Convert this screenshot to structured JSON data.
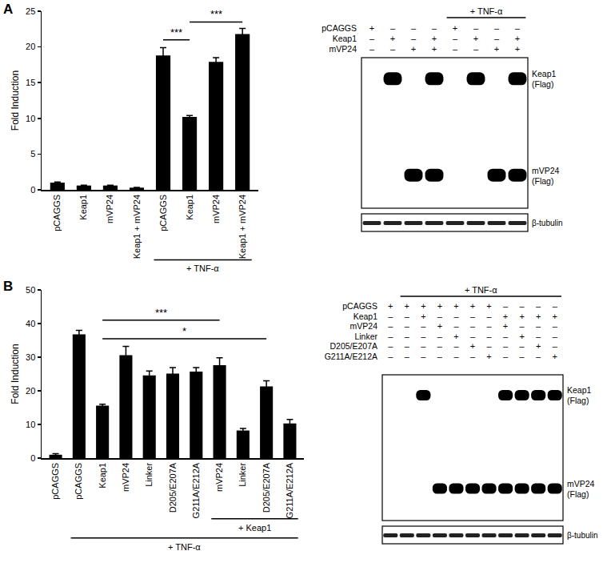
{
  "chart_data": [
    {
      "panel": "A",
      "type": "bar",
      "ylabel": "Fold Induction",
      "categories": [
        "pCAGGS",
        "Keap1",
        "mVP24",
        "Keap1 + mVP24",
        "pCAGGS",
        "Keap1",
        "mVP24",
        "Keap1 + mVP24"
      ],
      "values": [
        1.0,
        0.6,
        0.6,
        0.3,
        18.8,
        10.2,
        17.9,
        21.8
      ],
      "errors": [
        0.1,
        0.05,
        0.05,
        0.05,
        1.1,
        0.2,
        0.6,
        0.8
      ],
      "color": "#000000",
      "ylim": [
        0,
        25
      ],
      "yticks": [
        0,
        5,
        10,
        15,
        20,
        25
      ],
      "grid": false,
      "groups": [
        {
          "label": "+ TNF-α",
          "from": 4,
          "to": 7
        }
      ],
      "significance": [
        {
          "label": "***",
          "from": 4,
          "to": 5,
          "y": 21
        },
        {
          "label": "***",
          "from": 5,
          "to": 7,
          "y": 23.5
        }
      ]
    },
    {
      "panel": "B",
      "type": "bar",
      "ylabel": "Fold Induction",
      "categories": [
        "pCAGGS",
        "pCAGGS",
        "Keap1",
        "mVP24",
        "Linker",
        "D205/E207A",
        "G211A/E212A",
        "mVP24",
        "Linker",
        "D205/E207A",
        "G211A/E212A"
      ],
      "values": [
        1.0,
        36.8,
        15.6,
        30.6,
        24.6,
        25.1,
        25.7,
        27.6,
        8.2,
        21.3,
        10.3
      ],
      "errors": [
        0.3,
        1.2,
        0.4,
        2.6,
        1.3,
        1.8,
        1.2,
        2.2,
        0.6,
        1.7,
        1.2
      ],
      "color": "#000000",
      "ylim": [
        0,
        50
      ],
      "yticks": [
        0,
        10,
        20,
        30,
        40,
        50
      ],
      "grid": false,
      "groups": [
        {
          "label": "+ Keap1",
          "from": 7,
          "to": 10
        },
        {
          "label": "+ TNF-α",
          "from": 1,
          "to": 10
        }
      ],
      "significance": [
        {
          "label": "***",
          "from": 2,
          "to": 7,
          "y": 41
        },
        {
          "label": "*",
          "from": 2,
          "to": 9,
          "y": 35.5
        }
      ]
    }
  ],
  "blots": [
    {
      "treatment": {
        "label": "+ TNF-α",
        "from": 4,
        "to": 7
      },
      "rows": [
        {
          "label": "pCAGGS",
          "marks": [
            "+",
            "–",
            "–",
            "–",
            "+",
            "–",
            "–",
            "–"
          ]
        },
        {
          "label": "Keap1",
          "marks": [
            "–",
            "+",
            "–",
            "+",
            "–",
            "+",
            "–",
            "+"
          ]
        },
        {
          "label": "mVP24",
          "marks": [
            "–",
            "–",
            "+",
            "+",
            "–",
            "–",
            "+",
            "+"
          ]
        }
      ],
      "bands": [
        {
          "label": [
            "Keap1",
            "(Flag)"
          ],
          "lanes": [
            0,
            1,
            0,
            1,
            0,
            1,
            0,
            1
          ]
        },
        {
          "label": [
            "mVP24",
            "(Flag)"
          ],
          "lanes": [
            0,
            0,
            1,
            1,
            0,
            0,
            1,
            1
          ]
        }
      ],
      "loading": {
        "label": "β-tubulin",
        "lanes": [
          1,
          1,
          1,
          1,
          1,
          1,
          1,
          1
        ]
      }
    },
    {
      "treatment": {
        "label": "+ TNF-α",
        "from": 1,
        "to": 10
      },
      "rows": [
        {
          "label": "pCAGGS",
          "marks": [
            "+",
            "+",
            "+",
            "+",
            "+",
            "+",
            "+",
            "–",
            "–",
            "–",
            "–"
          ]
        },
        {
          "label": "Keap1",
          "marks": [
            "–",
            "–",
            "+",
            "–",
            "–",
            "–",
            "–",
            "+",
            "+",
            "+",
            "+"
          ]
        },
        {
          "label": "mVP24",
          "marks": [
            "–",
            "–",
            "–",
            "+",
            "–",
            "–",
            "–",
            "+",
            "–",
            "–",
            "–"
          ]
        },
        {
          "label": "Linker",
          "marks": [
            "–",
            "–",
            "–",
            "–",
            "+",
            "–",
            "–",
            "–",
            "+",
            "–",
            "–"
          ]
        },
        {
          "label": "D205/E207A",
          "marks": [
            "–",
            "–",
            "–",
            "–",
            "–",
            "+",
            "–",
            "–",
            "–",
            "+",
            "–"
          ]
        },
        {
          "label": "G211A/E212A",
          "marks": [
            "–",
            "–",
            "–",
            "–",
            "–",
            "–",
            "+",
            "–",
            "–",
            "–",
            "+"
          ]
        }
      ],
      "bands": [
        {
          "label": [
            "Keap1",
            "(Flag)"
          ],
          "lanes": [
            0,
            0,
            1,
            0,
            0,
            0,
            0,
            1,
            1,
            1,
            1
          ]
        },
        {
          "label": [
            "mVP24",
            "(Flag)"
          ],
          "lanes": [
            0,
            0,
            0,
            1,
            1,
            1,
            1,
            1,
            1,
            1,
            1
          ]
        }
      ],
      "loading": {
        "label": "β-tubulin",
        "lanes": [
          1,
          1,
          1,
          1,
          1,
          1,
          1,
          1,
          1,
          1,
          1
        ]
      }
    }
  ]
}
